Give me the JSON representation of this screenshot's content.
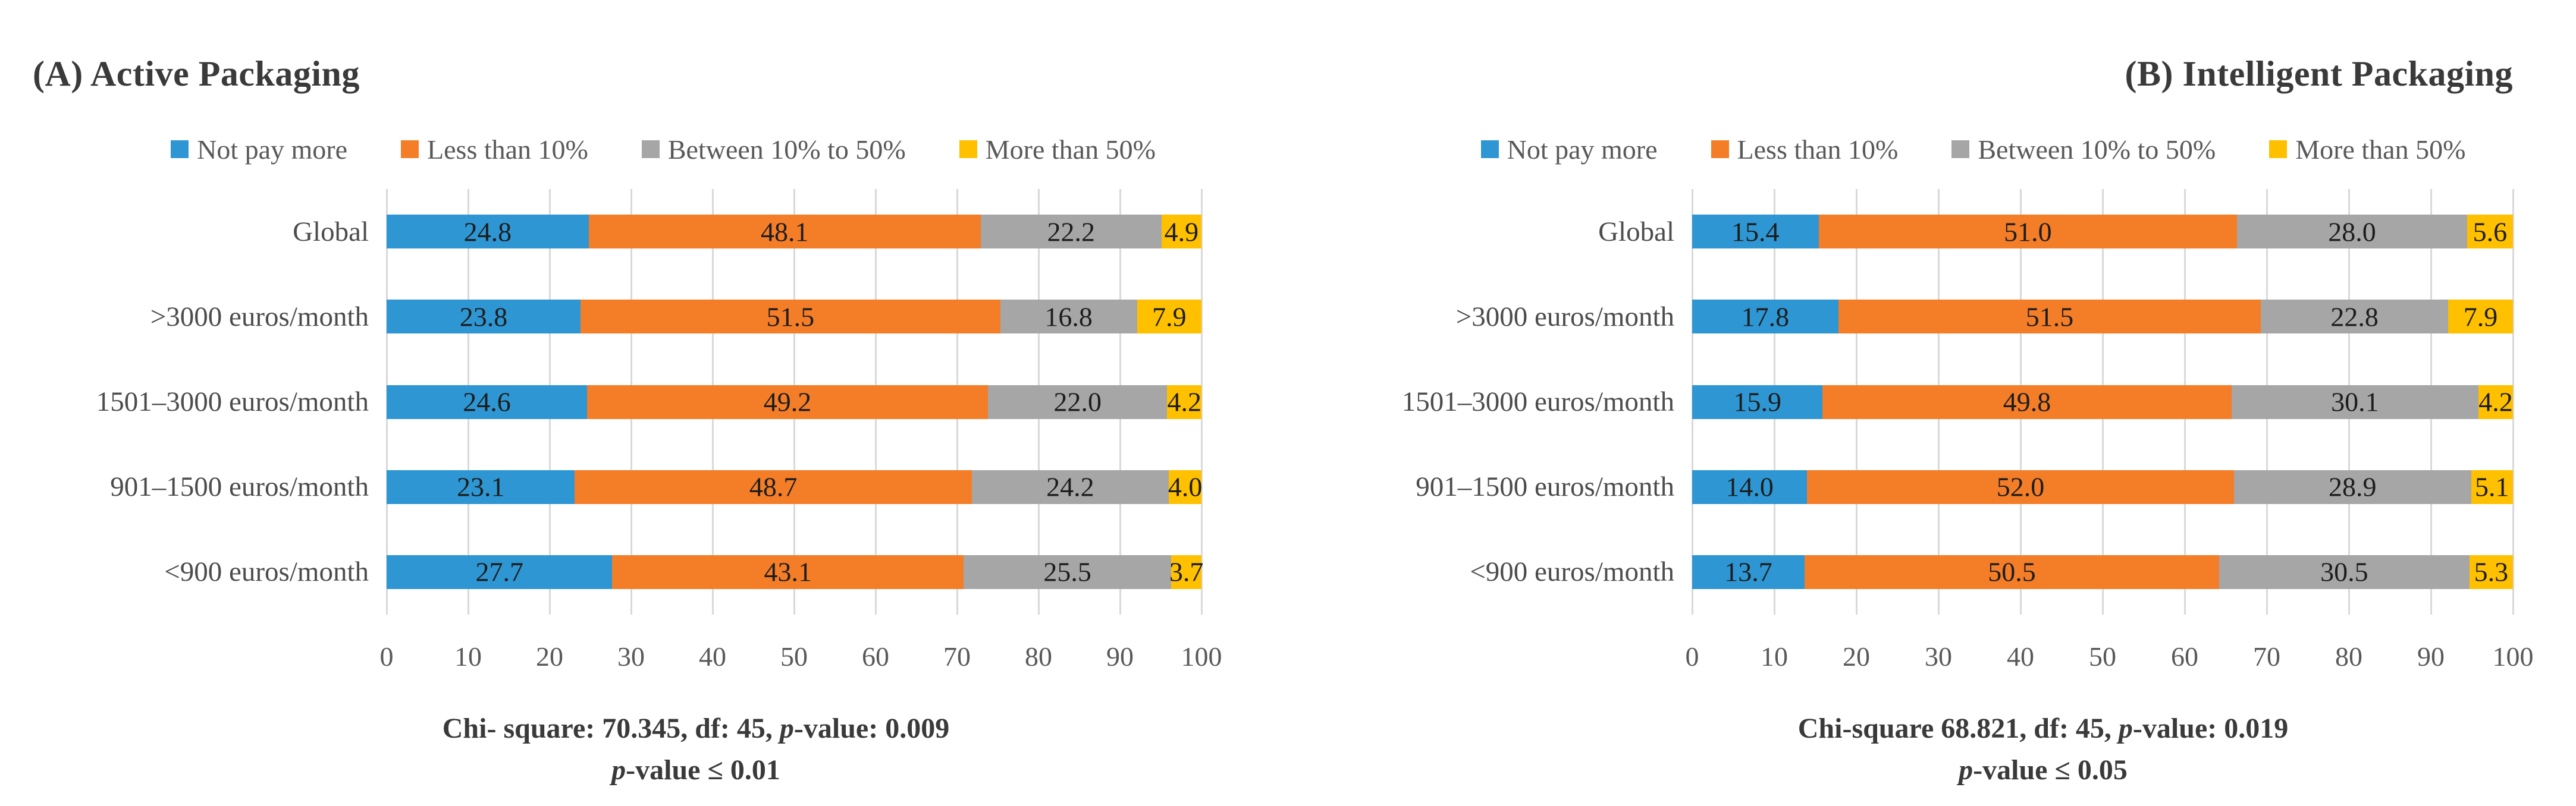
{
  "chart_data": [
    {
      "type": "bar",
      "stacked": true,
      "orientation": "horizontal",
      "title": "(A) Active Packaging",
      "title_align": "left",
      "legend_position": "top",
      "grid": true,
      "xlim": [
        0,
        100
      ],
      "xticks": [
        0,
        10,
        20,
        30,
        40,
        50,
        60,
        70,
        80,
        90,
        100
      ],
      "categories": [
        "Global",
        ">3000 euros/month",
        "1501–3000 euros/month",
        "901–1500 euros/month",
        "<900 euros/month"
      ],
      "series": [
        {
          "name": "Not pay more",
          "color": "#2E96D3",
          "values": [
            24.8,
            23.8,
            24.6,
            23.1,
            27.7
          ]
        },
        {
          "name": "Less than 10%",
          "color": "#F47D28",
          "values": [
            48.1,
            51.5,
            49.2,
            48.7,
            43.1
          ]
        },
        {
          "name": "Between 10% to 50%",
          "color": "#A6A6A6",
          "values": [
            22.2,
            16.8,
            22.0,
            24.2,
            25.5
          ]
        },
        {
          "name": "More than 50%",
          "color": "#FFC000",
          "values": [
            4.9,
            7.9,
            4.2,
            4.0,
            3.7
          ]
        }
      ],
      "stats_line": "Chi- square: 70.345, df: 45, p-value: 0.009",
      "significance_line": "p-value ≤ 0.01"
    },
    {
      "type": "bar",
      "stacked": true,
      "orientation": "horizontal",
      "title": "(B) Intelligent Packaging",
      "title_align": "right",
      "legend_position": "top",
      "grid": true,
      "xlim": [
        0,
        100
      ],
      "xticks": [
        0,
        10,
        20,
        30,
        40,
        50,
        60,
        70,
        80,
        90,
        100
      ],
      "categories": [
        "Global",
        ">3000 euros/month",
        "1501–3000 euros/month",
        "901–1500 euros/month",
        "<900 euros/month"
      ],
      "series": [
        {
          "name": "Not pay more",
          "color": "#2E96D3",
          "values": [
            15.4,
            17.8,
            15.9,
            14.0,
            13.7
          ]
        },
        {
          "name": "Less than 10%",
          "color": "#F47D28",
          "values": [
            51.0,
            51.5,
            49.8,
            52.0,
            50.5
          ]
        },
        {
          "name": "Between 10% to 50%",
          "color": "#A6A6A6",
          "values": [
            28.0,
            22.8,
            30.1,
            28.9,
            30.5
          ]
        },
        {
          "name": "More than 50%",
          "color": "#FFC000",
          "values": [
            5.6,
            7.9,
            4.2,
            5.1,
            5.3
          ]
        }
      ],
      "stats_line": "Chi-square 68.821, df: 45, p-value: 0.019",
      "significance_line": "p-value ≤ 0.05"
    }
  ],
  "colors": {
    "gridline": "#D9D9D9",
    "axis_text": "#595959",
    "title_text": "#3A3A3A",
    "background": "#FFFFFF"
  }
}
